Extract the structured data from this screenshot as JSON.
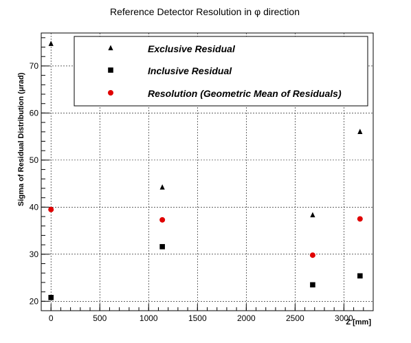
{
  "chart_data": {
    "type": "scatter",
    "title": "Reference Detector Resolution in  φ direction",
    "xlabel": "Z [mm]",
    "ylabel": "Sigma of Residual Distribution (μrad)",
    "xlim": [
      -100,
      3300
    ],
    "ylim": [
      18,
      77
    ],
    "x_ticks": [
      0,
      500,
      1000,
      1500,
      2000,
      2500,
      3000
    ],
    "y_ticks": [
      20,
      30,
      40,
      50,
      60,
      70
    ],
    "grid": true,
    "legend_position": "top",
    "series": [
      {
        "name": "Exclusive Residual",
        "marker": "triangle",
        "color": "#000000",
        "points": [
          [
            0,
            74.7
          ],
          [
            1140,
            44.2
          ],
          [
            2680,
            38.3
          ],
          [
            3165,
            56.0
          ]
        ]
      },
      {
        "name": "Inclusive Residual",
        "marker": "square",
        "color": "#000000",
        "points": [
          [
            0,
            20.8
          ],
          [
            1140,
            31.6
          ],
          [
            2680,
            23.5
          ],
          [
            3165,
            25.4
          ]
        ]
      },
      {
        "name": "Resolution (Geometric Mean of Residuals)",
        "marker": "circle",
        "color": "#e00000",
        "points": [
          [
            0,
            39.5
          ],
          [
            1140,
            37.3
          ],
          [
            2680,
            29.8
          ],
          [
            3165,
            37.5
          ]
        ]
      }
    ]
  }
}
